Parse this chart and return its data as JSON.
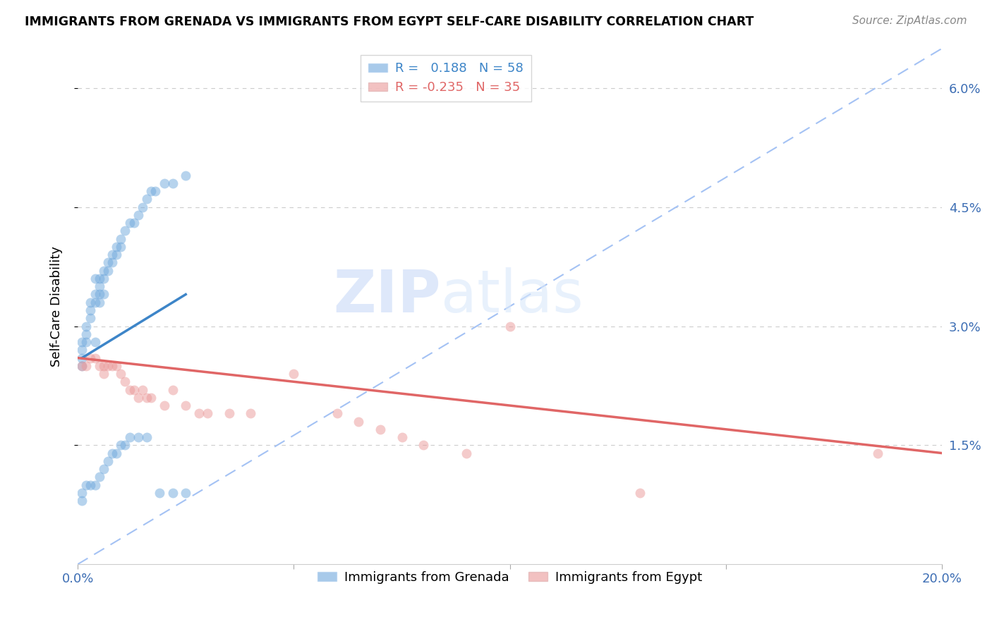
{
  "title": "IMMIGRANTS FROM GRENADA VS IMMIGRANTS FROM EGYPT SELF-CARE DISABILITY CORRELATION CHART",
  "source": "Source: ZipAtlas.com",
  "ylabel": "Self-Care Disability",
  "xlim": [
    0.0,
    0.2
  ],
  "ylim": [
    0.0,
    0.065
  ],
  "xticks": [
    0.0,
    0.05,
    0.1,
    0.15,
    0.2
  ],
  "xticklabels": [
    "0.0%",
    "",
    "",
    "",
    "20.0%"
  ],
  "yticks_right": [
    0.015,
    0.03,
    0.045,
    0.06
  ],
  "yticklabels_right": [
    "1.5%",
    "3.0%",
    "4.5%",
    "6.0%"
  ],
  "grenada_color": "#6fa8dc",
  "egypt_color": "#ea9999",
  "grenada_line_color": "#3d85c8",
  "egypt_line_color": "#e06666",
  "dashed_line_color": "#a4c2f4",
  "legend_R_grenada": "0.188",
  "legend_N_grenada": "58",
  "legend_R_egypt": "-0.235",
  "legend_N_egypt": "35",
  "watermark_zip": "ZIP",
  "watermark_atlas": "atlas",
  "grenada_scatter_x": [
    0.001,
    0.001,
    0.001,
    0.001,
    0.002,
    0.002,
    0.002,
    0.003,
    0.003,
    0.003,
    0.004,
    0.004,
    0.004,
    0.004,
    0.005,
    0.005,
    0.005,
    0.005,
    0.006,
    0.006,
    0.006,
    0.007,
    0.007,
    0.008,
    0.008,
    0.009,
    0.009,
    0.01,
    0.01,
    0.011,
    0.012,
    0.013,
    0.014,
    0.015,
    0.016,
    0.017,
    0.018,
    0.02,
    0.022,
    0.025,
    0.001,
    0.001,
    0.002,
    0.003,
    0.004,
    0.005,
    0.006,
    0.007,
    0.008,
    0.009,
    0.01,
    0.011,
    0.012,
    0.014,
    0.016,
    0.019,
    0.022,
    0.025
  ],
  "grenada_scatter_y": [
    0.028,
    0.027,
    0.026,
    0.025,
    0.03,
    0.029,
    0.028,
    0.033,
    0.032,
    0.031,
    0.036,
    0.034,
    0.033,
    0.028,
    0.036,
    0.035,
    0.034,
    0.033,
    0.037,
    0.036,
    0.034,
    0.038,
    0.037,
    0.039,
    0.038,
    0.04,
    0.039,
    0.041,
    0.04,
    0.042,
    0.043,
    0.043,
    0.044,
    0.045,
    0.046,
    0.047,
    0.047,
    0.048,
    0.048,
    0.049,
    0.009,
    0.008,
    0.01,
    0.01,
    0.01,
    0.011,
    0.012,
    0.013,
    0.014,
    0.014,
    0.015,
    0.015,
    0.016,
    0.016,
    0.016,
    0.009,
    0.009,
    0.009
  ],
  "egypt_scatter_x": [
    0.001,
    0.002,
    0.003,
    0.004,
    0.005,
    0.006,
    0.006,
    0.007,
    0.008,
    0.009,
    0.01,
    0.011,
    0.012,
    0.013,
    0.014,
    0.015,
    0.016,
    0.017,
    0.02,
    0.022,
    0.025,
    0.028,
    0.03,
    0.035,
    0.04,
    0.05,
    0.06,
    0.065,
    0.07,
    0.075,
    0.08,
    0.09,
    0.1,
    0.13,
    0.185
  ],
  "egypt_scatter_y": [
    0.025,
    0.025,
    0.026,
    0.026,
    0.025,
    0.025,
    0.024,
    0.025,
    0.025,
    0.025,
    0.024,
    0.023,
    0.022,
    0.022,
    0.021,
    0.022,
    0.021,
    0.021,
    0.02,
    0.022,
    0.02,
    0.019,
    0.019,
    0.019,
    0.019,
    0.024,
    0.019,
    0.018,
    0.017,
    0.016,
    0.015,
    0.014,
    0.03,
    0.009,
    0.014
  ],
  "grenada_line_x": [
    0.001,
    0.025
  ],
  "grenada_line_y_start": 0.026,
  "grenada_line_y_end": 0.034,
  "egypt_line_x": [
    0.0,
    0.2
  ],
  "egypt_line_y_start": 0.026,
  "egypt_line_y_end": 0.014
}
